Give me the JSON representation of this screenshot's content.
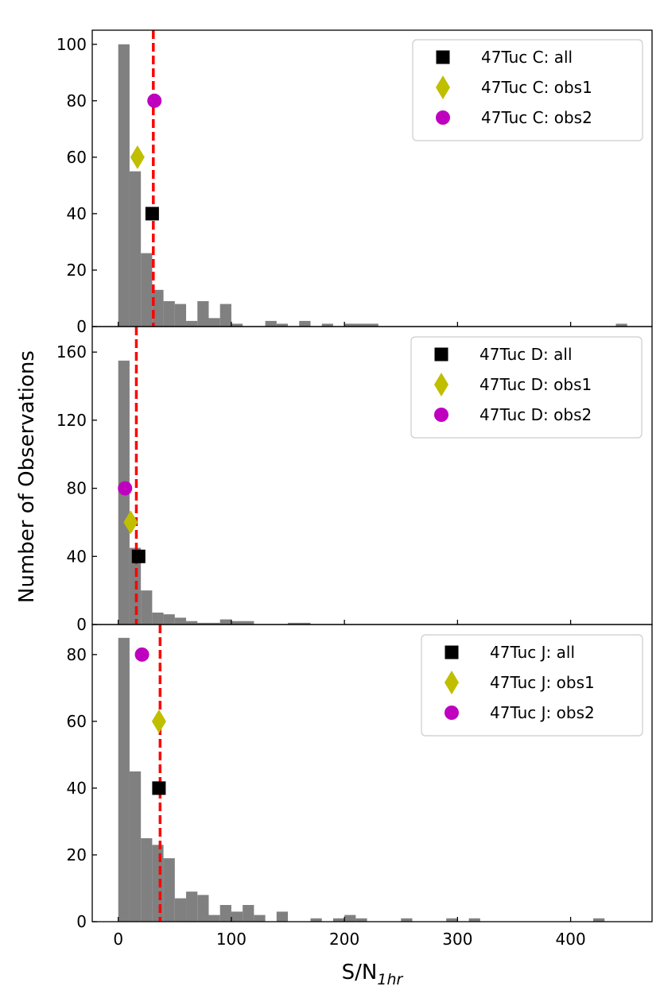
{
  "chart_data": {
    "type": "histogram",
    "ylabel": "Number of Observations",
    "xlabel": {
      "main": "S/N",
      "sub": "1hr"
    },
    "xlim": [
      -23,
      472
    ],
    "x_ticks": [
      0,
      100,
      200,
      300,
      400
    ],
    "bin_width": 10,
    "colors": {
      "bars": "#808080",
      "median_line": "#ff0000",
      "all": "#000000",
      "obs1": "#bfbf00",
      "obs2": "#bf00bf"
    },
    "panels": [
      {
        "name": "47Tuc C",
        "ylim": [
          0,
          105
        ],
        "y_ticks": [
          0,
          20,
          40,
          60,
          80,
          100
        ],
        "median": 31,
        "bins": [
          {
            "x0": 0,
            "x1": 10,
            "count": 100
          },
          {
            "x0": 10,
            "x1": 20,
            "count": 55
          },
          {
            "x0": 20,
            "x1": 30,
            "count": 26
          },
          {
            "x0": 30,
            "x1": 40,
            "count": 13
          },
          {
            "x0": 40,
            "x1": 50,
            "count": 9
          },
          {
            "x0": 50,
            "x1": 60,
            "count": 8
          },
          {
            "x0": 60,
            "x1": 70,
            "count": 2
          },
          {
            "x0": 70,
            "x1": 80,
            "count": 9
          },
          {
            "x0": 80,
            "x1": 90,
            "count": 3
          },
          {
            "x0": 90,
            "x1": 100,
            "count": 8
          },
          {
            "x0": 100,
            "x1": 110,
            "count": 1
          },
          {
            "x0": 130,
            "x1": 140,
            "count": 2
          },
          {
            "x0": 140,
            "x1": 150,
            "count": 1
          },
          {
            "x0": 160,
            "x1": 170,
            "count": 2
          },
          {
            "x0": 180,
            "x1": 190,
            "count": 1
          },
          {
            "x0": 200,
            "x1": 230,
            "count": 1
          },
          {
            "x0": 440,
            "x1": 450,
            "count": 1
          }
        ],
        "markers": [
          {
            "key": "all",
            "label": "47Tuc C: all",
            "x": 30,
            "y": 40
          },
          {
            "key": "obs1",
            "label": "47Tuc C: obs1",
            "x": 17,
            "y": 60
          },
          {
            "key": "obs2",
            "label": "47Tuc C: obs2",
            "x": 32,
            "y": 80
          }
        ]
      },
      {
        "name": "47Tuc D",
        "ylim": [
          0,
          175
        ],
        "y_ticks": [
          0,
          40,
          80,
          120,
          160
        ],
        "median": 16,
        "bins": [
          {
            "x0": 0,
            "x1": 10,
            "count": 155
          },
          {
            "x0": 10,
            "x1": 20,
            "count": 45
          },
          {
            "x0": 20,
            "x1": 30,
            "count": 20
          },
          {
            "x0": 30,
            "x1": 40,
            "count": 7
          },
          {
            "x0": 40,
            "x1": 50,
            "count": 6
          },
          {
            "x0": 50,
            "x1": 60,
            "count": 4
          },
          {
            "x0": 60,
            "x1": 70,
            "count": 2
          },
          {
            "x0": 70,
            "x1": 90,
            "count": 1
          },
          {
            "x0": 90,
            "x1": 100,
            "count": 3
          },
          {
            "x0": 100,
            "x1": 120,
            "count": 2
          },
          {
            "x0": 150,
            "x1": 170,
            "count": 1
          }
        ],
        "markers": [
          {
            "key": "all",
            "label": "47Tuc D: all",
            "x": 18,
            "y": 40
          },
          {
            "key": "obs1",
            "label": "47Tuc D: obs1",
            "x": 11,
            "y": 60
          },
          {
            "key": "obs2",
            "label": "47Tuc D: obs2",
            "x": 6,
            "y": 80
          }
        ]
      },
      {
        "name": "47Tuc J",
        "ylim": [
          0,
          89
        ],
        "y_ticks": [
          0,
          20,
          40,
          60,
          80
        ],
        "median": 37,
        "bins": [
          {
            "x0": 0,
            "x1": 10,
            "count": 85
          },
          {
            "x0": 10,
            "x1": 20,
            "count": 45
          },
          {
            "x0": 20,
            "x1": 30,
            "count": 25
          },
          {
            "x0": 30,
            "x1": 40,
            "count": 23
          },
          {
            "x0": 40,
            "x1": 50,
            "count": 19
          },
          {
            "x0": 50,
            "x1": 60,
            "count": 7
          },
          {
            "x0": 60,
            "x1": 70,
            "count": 9
          },
          {
            "x0": 70,
            "x1": 80,
            "count": 8
          },
          {
            "x0": 80,
            "x1": 90,
            "count": 2
          },
          {
            "x0": 90,
            "x1": 100,
            "count": 5
          },
          {
            "x0": 100,
            "x1": 110,
            "count": 3
          },
          {
            "x0": 110,
            "x1": 120,
            "count": 5
          },
          {
            "x0": 120,
            "x1": 130,
            "count": 2
          },
          {
            "x0": 140,
            "x1": 150,
            "count": 3
          },
          {
            "x0": 170,
            "x1": 180,
            "count": 1
          },
          {
            "x0": 190,
            "x1": 200,
            "count": 1
          },
          {
            "x0": 200,
            "x1": 210,
            "count": 2
          },
          {
            "x0": 210,
            "x1": 220,
            "count": 1
          },
          {
            "x0": 250,
            "x1": 260,
            "count": 1
          },
          {
            "x0": 290,
            "x1": 300,
            "count": 1
          },
          {
            "x0": 310,
            "x1": 320,
            "count": 1
          },
          {
            "x0": 420,
            "x1": 430,
            "count": 1
          }
        ],
        "markers": [
          {
            "key": "all",
            "label": "47Tuc J: all",
            "x": 36,
            "y": 40
          },
          {
            "key": "obs1",
            "label": "47Tuc J: obs1",
            "x": 36,
            "y": 60
          },
          {
            "key": "obs2",
            "label": "47Tuc J: obs2",
            "x": 21,
            "y": 80
          }
        ]
      }
    ]
  }
}
